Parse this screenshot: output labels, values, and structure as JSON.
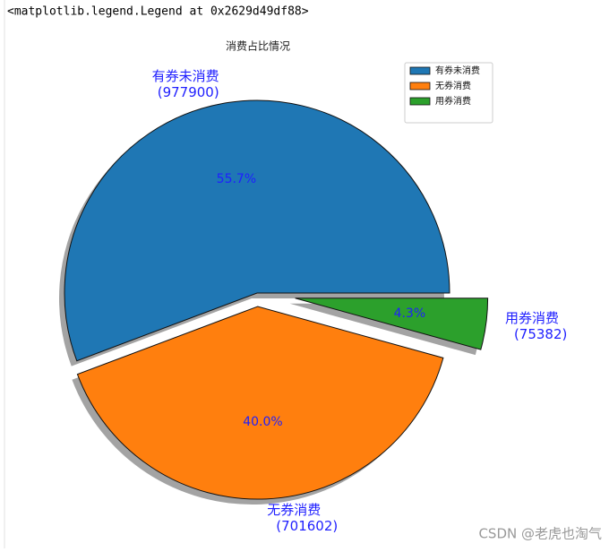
{
  "output_text": "<matplotlib.legend.Legend at 0x2629d49df88>",
  "watermark": "CSDN @老虎也淘气",
  "chart_data": {
    "type": "pie",
    "title": "消费占比情况",
    "categories": [
      "有券未消费",
      "无券消费",
      "用券消费"
    ],
    "values": [
      977900,
      701602,
      75382
    ],
    "value_labels": [
      "(977900)",
      "(701602)",
      "(75382)"
    ],
    "percent_labels": [
      "55.7%",
      "40.0%",
      "4.3%"
    ],
    "colors": [
      "#1f77b4",
      "#ff7f0e",
      "#2ca02c"
    ],
    "explode": [
      0,
      0.07,
      0.2
    ],
    "start_angle": 0,
    "shadow": true,
    "label_color": "#1f1fff",
    "legend": "upper right"
  }
}
